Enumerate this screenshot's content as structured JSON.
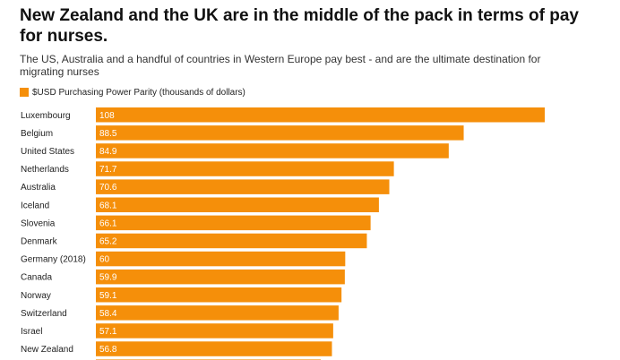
{
  "title": "New Zealand and the UK are in the middle of the pack in terms of pay for nurses.",
  "subtitle": "The US, Australia and a handful of countries in Western Europe pay best - and are the ultimate destination for migrating nurses",
  "legend": {
    "label": "$USD Purchasing Power Parity (thousands of dollars)"
  },
  "colors": {
    "bar": "#f58f0a"
  },
  "chart_data": {
    "type": "bar",
    "orientation": "horizontal",
    "categories": [
      "Luxembourg",
      "Belgium",
      "United States",
      "Netherlands",
      "Australia",
      "Iceland",
      "Slovenia",
      "Denmark",
      "Germany (2018)",
      "Canada",
      "Norway",
      "Switzerland",
      "Israel",
      "New Zealand"
    ],
    "series": [
      {
        "name": "$USD Purchasing Power Parity (thousands of dollars)",
        "values": [
          108,
          88.5,
          84.9,
          71.7,
          70.6,
          68.1,
          66.1,
          65.2,
          60,
          59.9,
          59.1,
          58.4,
          57.1,
          56.8
        ]
      }
    ],
    "value_labels": [
      "108",
      "88.5",
      "84.9",
      "71.7",
      "70.6",
      "68.1",
      "66.1",
      "65.2",
      "60",
      "59.9",
      "59.1",
      "58.4",
      "57.1",
      "56.8"
    ],
    "xlim": [
      0,
      108
    ],
    "grid": false,
    "legend_position": "top-left"
  }
}
